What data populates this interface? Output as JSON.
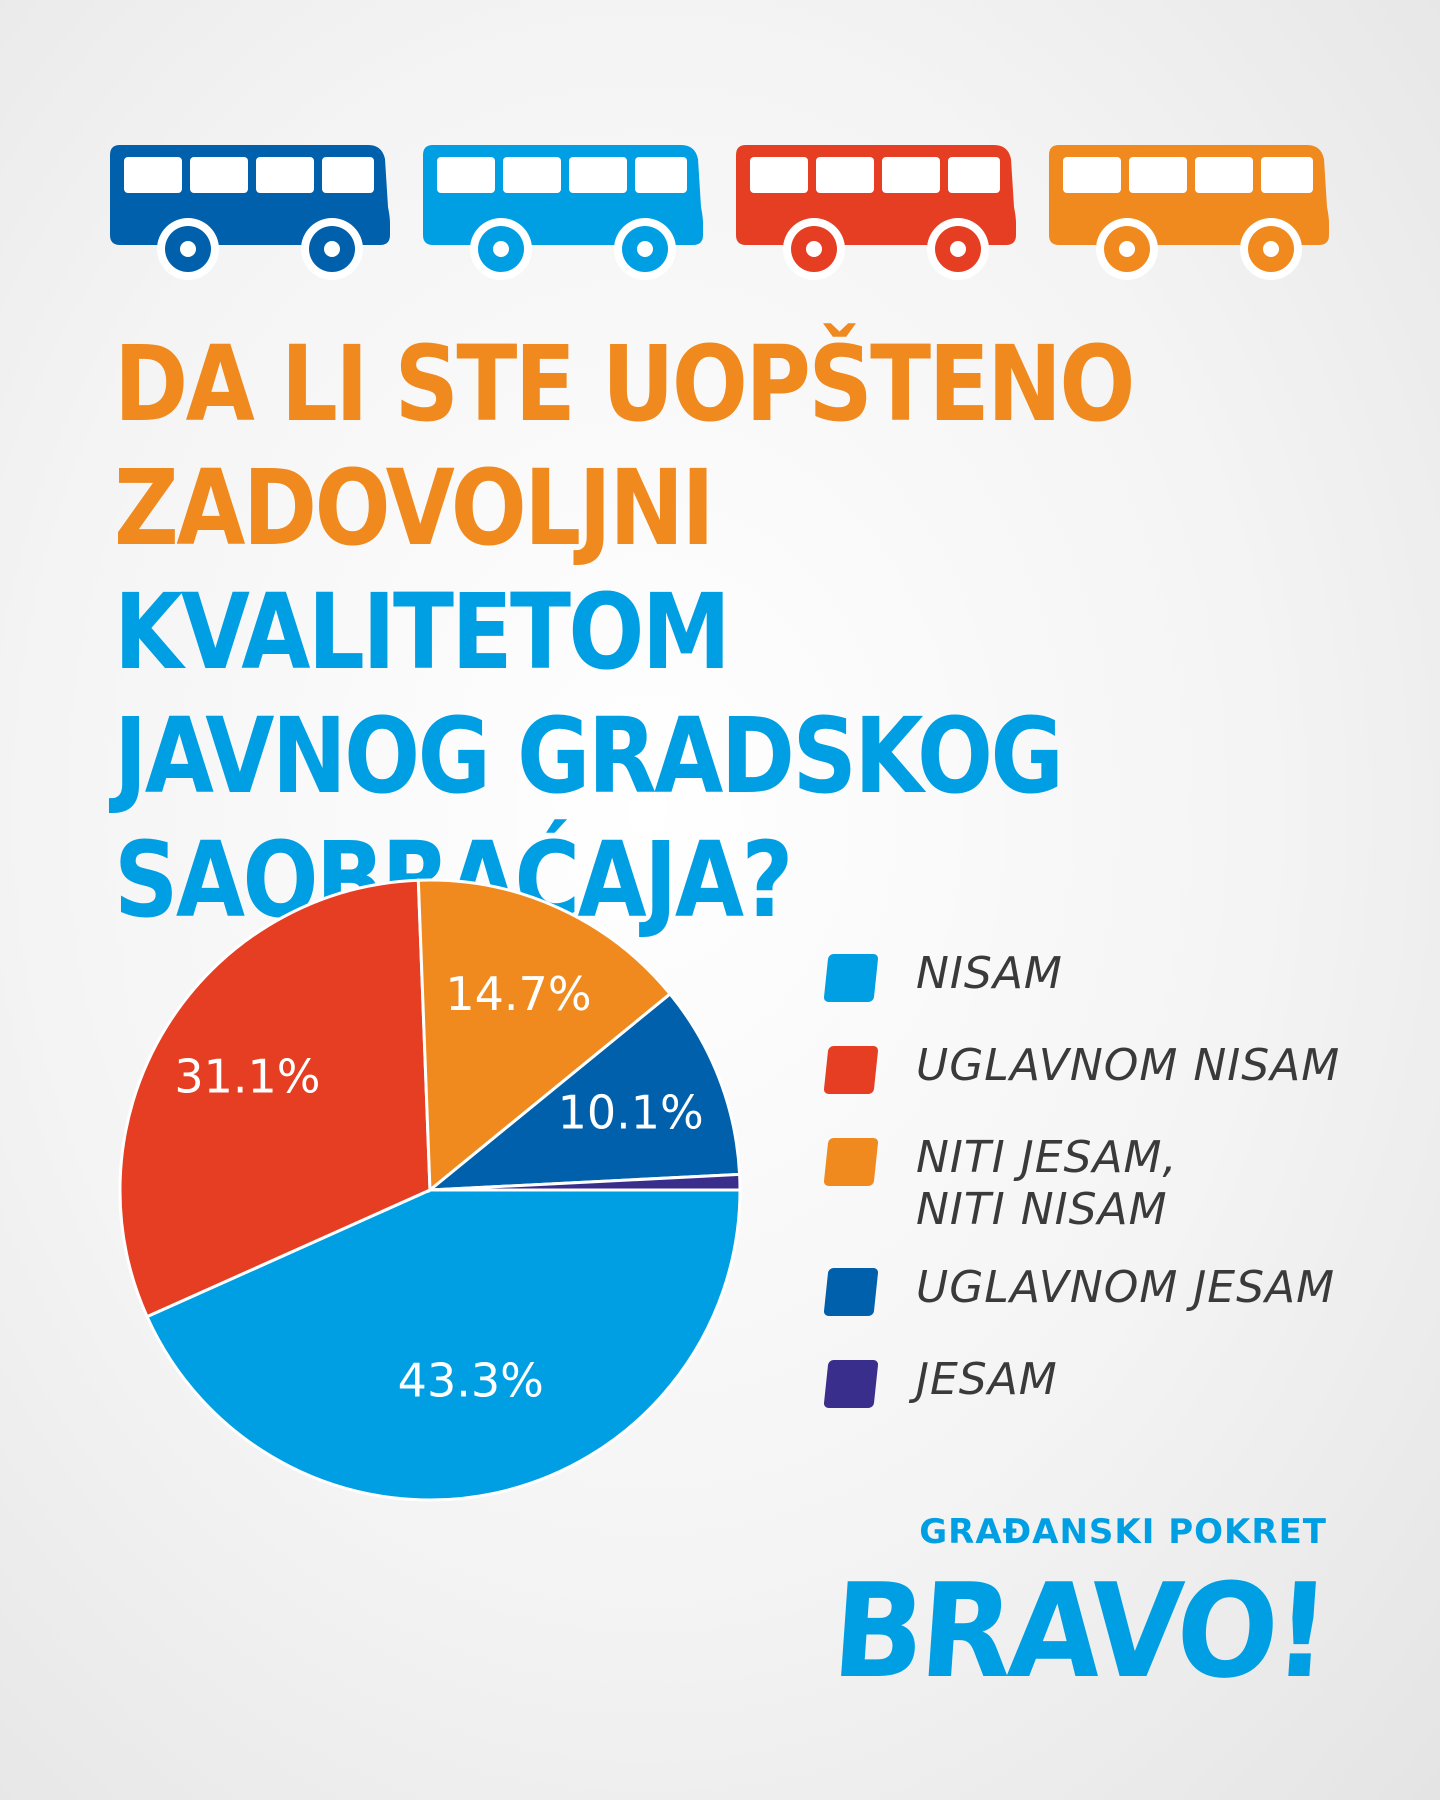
{
  "header": {
    "bus_colors": [
      "#0060ac",
      "#009fe3",
      "#e53e22",
      "#f08a1e"
    ]
  },
  "title": {
    "line1": "DA LI STE UOPŠTENO",
    "line2_orange": "ZADOVOLJNI",
    "line2_blue": "KVALITETOM",
    "line3": "JAVNOG GRADSKOG",
    "line4": "SAOBRAĆAJA?"
  },
  "colors": {
    "orange": "#f08a1e",
    "blue": "#009fe3"
  },
  "chart_data": {
    "type": "pie",
    "slices": [
      {
        "label": "NISAM",
        "value": 43.3,
        "value_label": "43.3%",
        "color": "#009fe3"
      },
      {
        "label": "UGLAVNOM NISAM",
        "value": 31.1,
        "value_label": "31.1%",
        "color": "#e53e22"
      },
      {
        "label": "NITI JESAM,\nNITI NISAM",
        "value": 14.7,
        "value_label": "14.7%",
        "color": "#f08a1e"
      },
      {
        "label": "UGLAVNOM JESAM",
        "value": 10.1,
        "value_label": "10.1%",
        "color": "#0060ac"
      },
      {
        "label": "JESAM",
        "value": 0.8,
        "value_label": "",
        "color": "#3a2e8c"
      }
    ],
    "legend_placement": "right"
  },
  "brand": {
    "subtitle": "GRAĐANSKI POKRET",
    "name": "BRAVO!"
  }
}
